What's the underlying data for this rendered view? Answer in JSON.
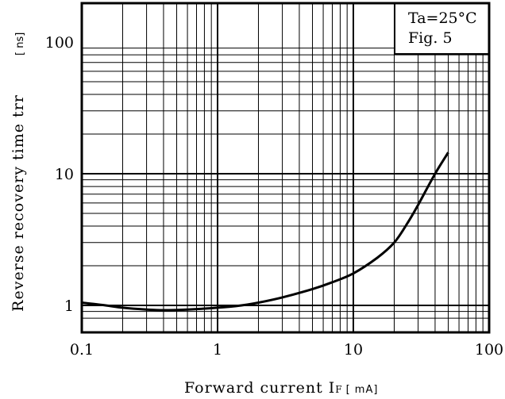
{
  "chart_data": {
    "type": "line",
    "x_scale": "log",
    "y_scale": "log",
    "xlim": [
      0.1,
      100
    ],
    "ylim": [
      0.8,
      100
    ],
    "x_ticks": [
      {
        "value": 0.1,
        "label": "0.1"
      },
      {
        "value": 1,
        "label": "1"
      },
      {
        "value": 10,
        "label": "10"
      },
      {
        "value": 100,
        "label": "100"
      }
    ],
    "y_ticks": [
      {
        "value": 1,
        "label": "1"
      },
      {
        "value": 10,
        "label": "10"
      },
      {
        "value": 100,
        "label": "100"
      }
    ],
    "xlabel": "Forward current I",
    "xlabel_sub": "F",
    "xlabel_unit": "[ mA]",
    "ylabel": "Reverse recovery time trr",
    "ylabel_unit": "[ ns]",
    "annotation_lines": [
      "Ta=25°C",
      "Fig.  5"
    ],
    "grid": true,
    "legend_position": "top-right",
    "line_color": "#000000",
    "series": [
      {
        "x": [
          0.1,
          0.15,
          0.2,
          0.3,
          0.4,
          0.6,
          1,
          1.5,
          2,
          3,
          5,
          7,
          10,
          15,
          20,
          25,
          30,
          40,
          50
        ],
        "values": [
          1.05,
          1.0,
          0.96,
          0.93,
          0.92,
          0.93,
          0.96,
          1.0,
          1.05,
          1.15,
          1.33,
          1.5,
          1.75,
          2.3,
          3.0,
          4.2,
          5.8,
          10.0,
          14.5
        ]
      }
    ]
  }
}
